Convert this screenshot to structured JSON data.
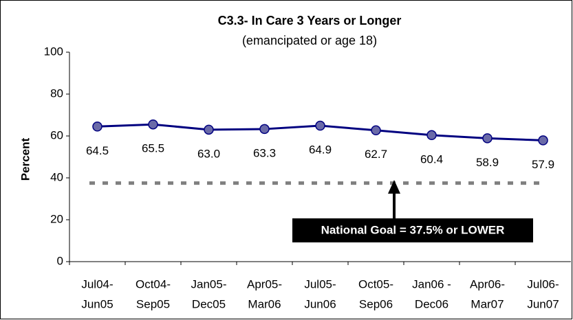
{
  "chart_data": {
    "type": "line",
    "title": "C3.3- In Care 3 Years or Longer",
    "subtitle": "(emancipated or age 18)",
    "y_label": "Percent",
    "categories": [
      [
        "Jul04-",
        "Jun05"
      ],
      [
        "Oct04-",
        "Sep05"
      ],
      [
        "Jan05-",
        "Dec05"
      ],
      [
        "Apr05-",
        "Mar06"
      ],
      [
        "Jul05-",
        "Jun06"
      ],
      [
        "Oct05-",
        "Sep06"
      ],
      [
        "Jan06 -",
        "Dec06"
      ],
      [
        "Apr06-",
        "Mar07"
      ],
      [
        "Jul06-",
        "Jun07"
      ]
    ],
    "series": [
      {
        "name": "In Care 3 Years or Longer",
        "color": "#000080",
        "marker_color": "#6a6aa8",
        "values": [
          64.5,
          65.5,
          63,
          63.3,
          64.9,
          62.7,
          60.4,
          58.9,
          57.9
        ],
        "value_labels": [
          "64.5",
          "65.5",
          "63.0",
          "63.3",
          "64.9",
          "62.7",
          "60.4",
          "58.9",
          "57.9"
        ]
      }
    ],
    "goal": 37.5,
    "goal_color": "#808080",
    "annotation": "National Goal = 37.5% or LOWER",
    "ylim": [
      0,
      100
    ],
    "yticks": [
      0,
      20,
      40,
      60,
      80,
      100
    ],
    "grid": false
  }
}
